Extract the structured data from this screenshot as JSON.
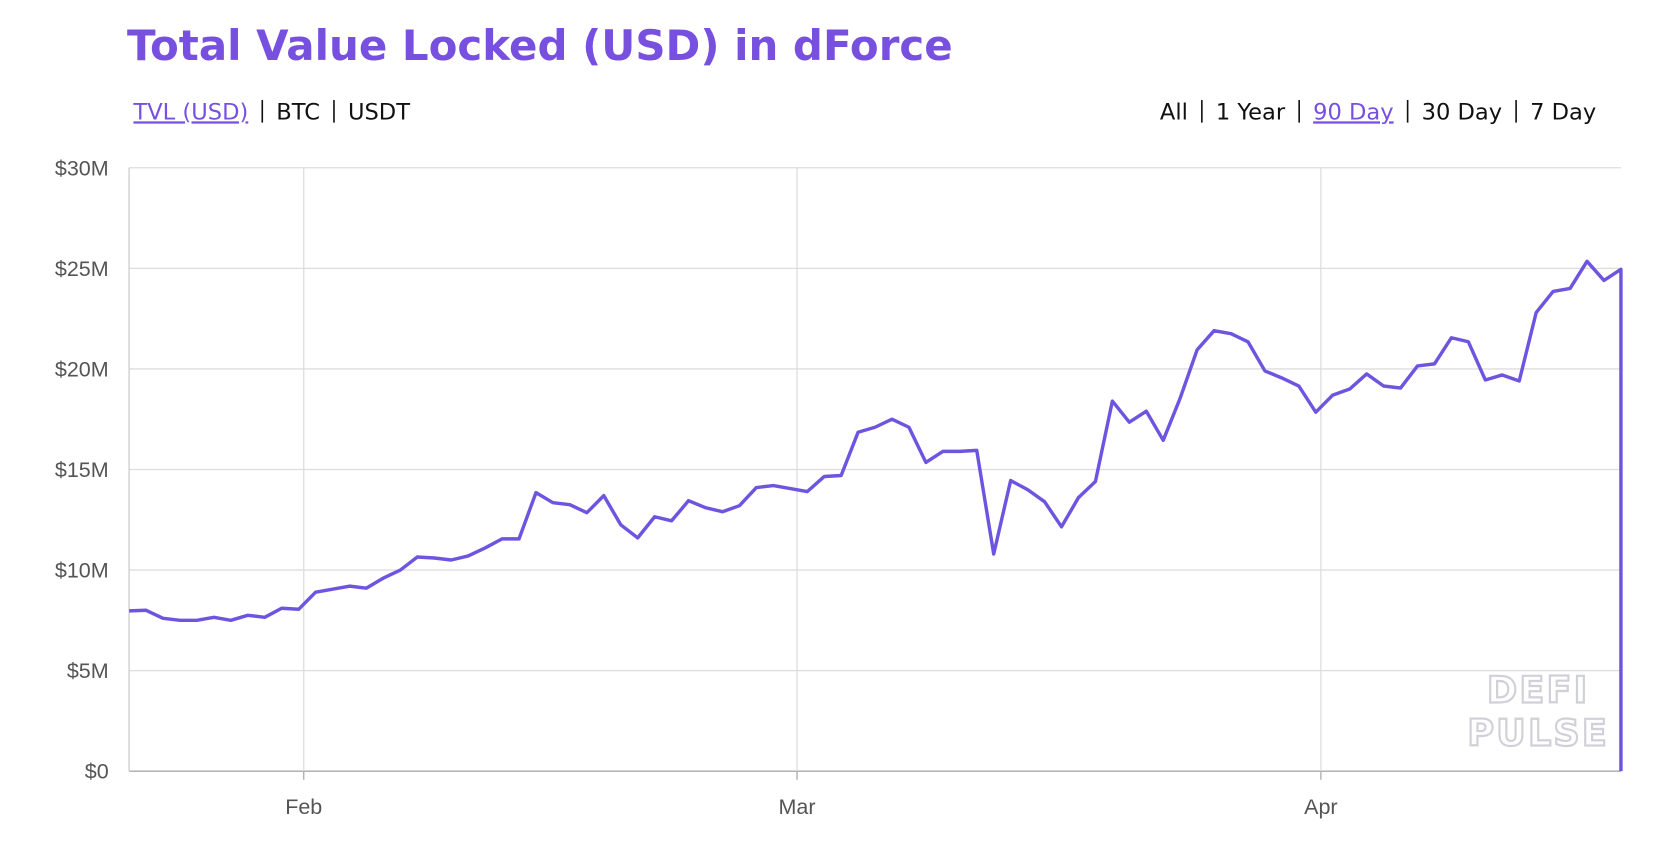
{
  "chart_data": {
    "type": "line",
    "title": "Total Value Locked (USD) in dForce",
    "metric_tabs": [
      "TVL (USD)",
      "BTC",
      "USDT"
    ],
    "selected_metric": 0,
    "range_tabs": [
      "All",
      "1 Year",
      "90 Day",
      "30 Day",
      "7 Day"
    ],
    "selected_range": 2,
    "watermark": [
      "DEFI",
      "PULSE"
    ],
    "color": "#6e55e0",
    "x": [
      22,
      23,
      24,
      25,
      26,
      27,
      28,
      29,
      30,
      31,
      32,
      33,
      34,
      35,
      36,
      37,
      38,
      39,
      40,
      41,
      42,
      43,
      44,
      45,
      46,
      47,
      48,
      49,
      50,
      51,
      52,
      53,
      54,
      55,
      56,
      57,
      58,
      59,
      60,
      61,
      62,
      63,
      64,
      65,
      66,
      67,
      68,
      69,
      70,
      71,
      72,
      73,
      74,
      75,
      76,
      77,
      78,
      79,
      80,
      81,
      82,
      83,
      84,
      85,
      86,
      87,
      88,
      89,
      90,
      91,
      92,
      93,
      94,
      95,
      96,
      97,
      98,
      99,
      100,
      101,
      102,
      103,
      104,
      105,
      106,
      107,
      108,
      109,
      110,
      110
    ],
    "values": [
      7970000,
      8000000,
      7600000,
      7500000,
      7500000,
      7650000,
      7500000,
      7750000,
      7650000,
      8100000,
      8050000,
      8900000,
      9050000,
      9200000,
      9100000,
      9600000,
      10000000,
      10650000,
      10600000,
      10500000,
      10700000,
      11100000,
      11550000,
      11550000,
      13850000,
      13350000,
      13250000,
      12850000,
      13700000,
      12250000,
      11600000,
      12650000,
      12450000,
      13450000,
      13100000,
      12900000,
      13200000,
      14100000,
      14200000,
      14050000,
      13900000,
      14650000,
      14700000,
      16850000,
      17100000,
      17500000,
      17100000,
      15350000,
      15900000,
      15900000,
      15950000,
      10800000,
      14450000,
      14000000,
      13400000,
      12150000,
      13600000,
      14400000,
      18400000,
      17350000,
      17900000,
      16450000,
      18550000,
      20950000,
      21900000,
      21750000,
      21350000,
      19900000,
      19550000,
      19150000,
      17850000,
      18700000,
      19000000,
      19750000,
      19150000,
      19050000,
      20150000,
      20250000,
      21550000,
      21350000,
      19450000,
      19700000,
      19400000,
      22800000,
      23850000,
      24000000,
      25350000,
      24400000,
      24950000,
      0
    ],
    "xlim": [
      22,
      110
    ],
    "xticks": [
      {
        "value": 32.3,
        "label": "Feb"
      },
      {
        "value": 61.4,
        "label": "Mar"
      },
      {
        "value": 92.3,
        "label": "Apr"
      }
    ],
    "ylim": [
      0,
      30000000
    ],
    "yticks": [
      {
        "value": 0,
        "label": "$0"
      },
      {
        "value": 5000000,
        "label": "$5M"
      },
      {
        "value": 10000000,
        "label": "$10M"
      },
      {
        "value": 15000000,
        "label": "$15M"
      },
      {
        "value": 20000000,
        "label": "$20M"
      },
      {
        "value": 25000000,
        "label": "$25M"
      },
      {
        "value": 30000000,
        "label": "$30M"
      }
    ],
    "grid": true
  }
}
